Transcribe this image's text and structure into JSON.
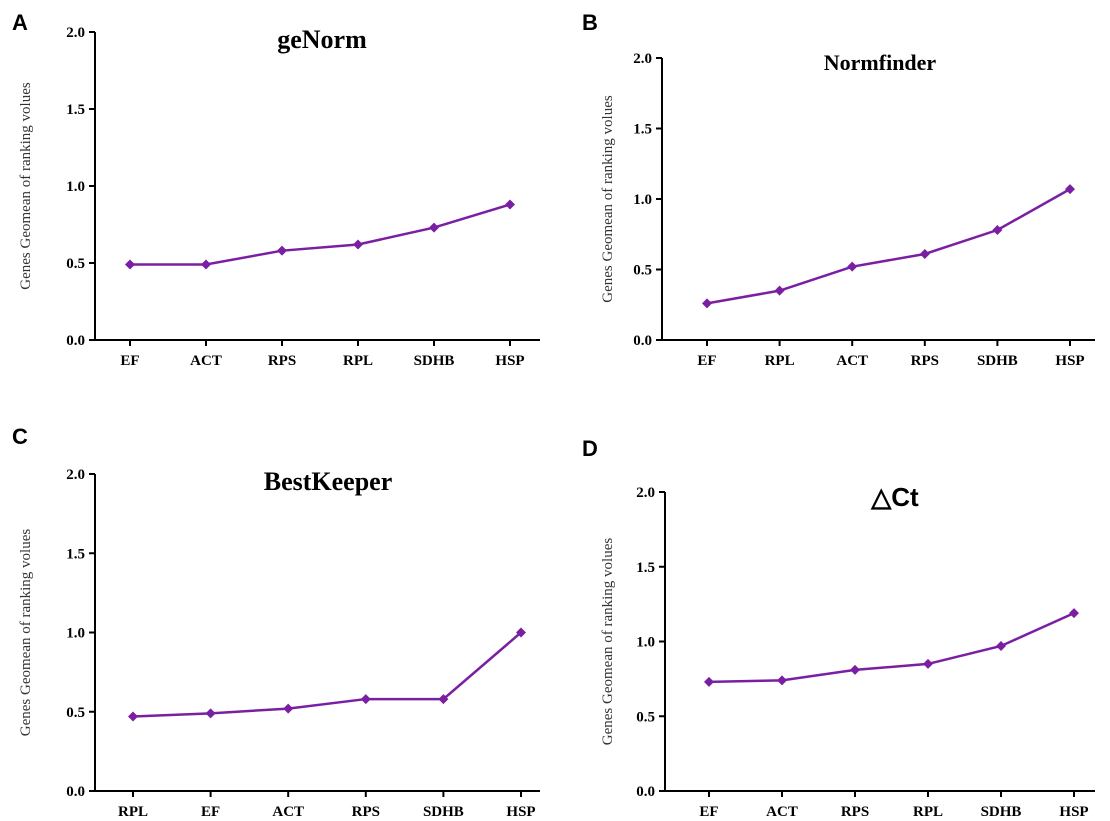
{
  "figure": {
    "panels": [
      {
        "letter": "A"
      },
      {
        "letter": "B"
      },
      {
        "letter": "C"
      },
      {
        "letter": "D"
      }
    ]
  },
  "style": {
    "line_color": "#7b1fa2",
    "axis_color": "#000000"
  },
  "chart_data": [
    {
      "type": "line",
      "title": "geNorm",
      "ylabel": "Genes Geomean of ranking volues",
      "xlabel": "",
      "categories": [
        "EF",
        "ACT",
        "RPS",
        "RPL",
        "SDHB",
        "HSP"
      ],
      "values": [
        0.49,
        0.49,
        0.58,
        0.62,
        0.73,
        0.88
      ],
      "ylim": [
        0,
        2.0
      ],
      "yticks": [
        "0.0",
        "0.5",
        "1.0",
        "1.5",
        "2.0"
      ],
      "grid": false,
      "marker": "diamond"
    },
    {
      "type": "line",
      "title": "Normfinder",
      "ylabel": "Genes Geomean of ranking volues",
      "xlabel": "",
      "categories": [
        "EF",
        "RPL",
        "ACT",
        "RPS",
        "SDHB",
        "HSP"
      ],
      "values": [
        0.26,
        0.35,
        0.52,
        0.61,
        0.78,
        1.07
      ],
      "ylim": [
        0,
        2.0
      ],
      "yticks": [
        "0.0",
        "0.5",
        "1.0",
        "1.5",
        "2.0"
      ],
      "grid": false,
      "marker": "diamond"
    },
    {
      "type": "line",
      "title": "BestKeeper",
      "ylabel": "Genes Geomean of ranking volues",
      "xlabel": "",
      "categories": [
        "RPL",
        "EF",
        "ACT",
        "RPS",
        "SDHB",
        "HSP"
      ],
      "values": [
        0.47,
        0.49,
        0.52,
        0.58,
        0.58,
        1.0
      ],
      "ylim": [
        0,
        2.0
      ],
      "yticks": [
        "0.0",
        "0.5",
        "1.0",
        "1.5",
        "2.0"
      ],
      "grid": false,
      "marker": "diamond"
    },
    {
      "type": "line",
      "title": "△Ct",
      "ylabel": "Genes Geomean of ranking volues",
      "xlabel": "",
      "categories": [
        "EF",
        "ACT",
        "RPS",
        "RPL",
        "SDHB",
        "HSP"
      ],
      "values": [
        0.73,
        0.74,
        0.81,
        0.85,
        0.97,
        1.19
      ],
      "ylim": [
        0,
        2.0
      ],
      "yticks": [
        "0.0",
        "0.5",
        "1.0",
        "1.5",
        "2.0"
      ],
      "grid": false,
      "marker": "diamond"
    }
  ]
}
